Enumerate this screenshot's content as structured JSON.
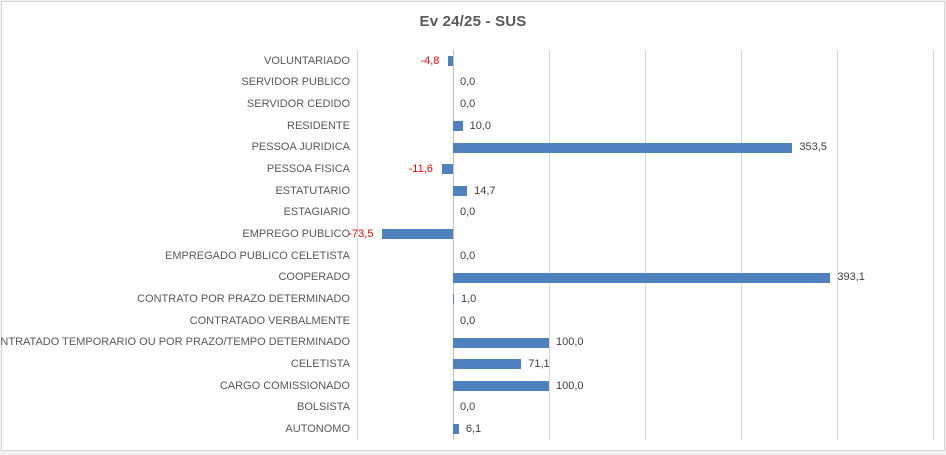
{
  "title": "Ev 24/25 - SUS",
  "chart_data": {
    "type": "bar",
    "orientation": "horizontal",
    "title": "Ev 24/25 - SUS",
    "categories": [
      "VOLUNTARIADO",
      "SERVIDOR PUBLICO",
      "SERVIDOR CEDIDO",
      "RESIDENTE",
      "PESSOA JURIDICA",
      "PESSOA FISICA",
      "ESTATUTARIO",
      "ESTAGIARIO",
      "EMPREGO PUBLICO",
      "EMPREGADO PUBLICO CELETISTA",
      "COOPERADO",
      "CONTRATO POR PRAZO DETERMINADO",
      "CONTRATADO VERBALMENTE",
      "CONTRATADO TEMPORARIO OU POR PRAZO/TEMPO DETERMINADO",
      "CELETISTA",
      "CARGO COMISSIONADO",
      "BOLSISTA",
      "AUTONOMO"
    ],
    "values": [
      -4.8,
      0.0,
      0.0,
      10.0,
      353.5,
      -11.6,
      14.7,
      0.0,
      -73.5,
      0.0,
      393.1,
      1.0,
      0.0,
      100.0,
      71.1,
      100.0,
      0.0,
      6.1
    ],
    "value_labels": [
      "-4,8",
      "0,0",
      "0,0",
      "10,0",
      "353,5",
      "-11,6",
      "14,7",
      "0,0",
      "-73,5",
      "0,0",
      "393,1",
      "1,0",
      "0,0",
      "100,0",
      "71,1",
      "100,0",
      "0,0",
      "6,1"
    ],
    "xlim": [
      -100,
      500
    ],
    "tick_step": 100,
    "grid": true,
    "axis_tick_labels_visible": false,
    "legend": "none",
    "colors": {
      "bar": "#4e81bd",
      "negative_value_label": "#ff0000",
      "value_label": "#404040",
      "category_label": "#595959",
      "gridline": "#d9d9d9",
      "axis_line": "#c3c3c3",
      "chart_border": "#d6d6d6",
      "title": "#595959"
    }
  }
}
